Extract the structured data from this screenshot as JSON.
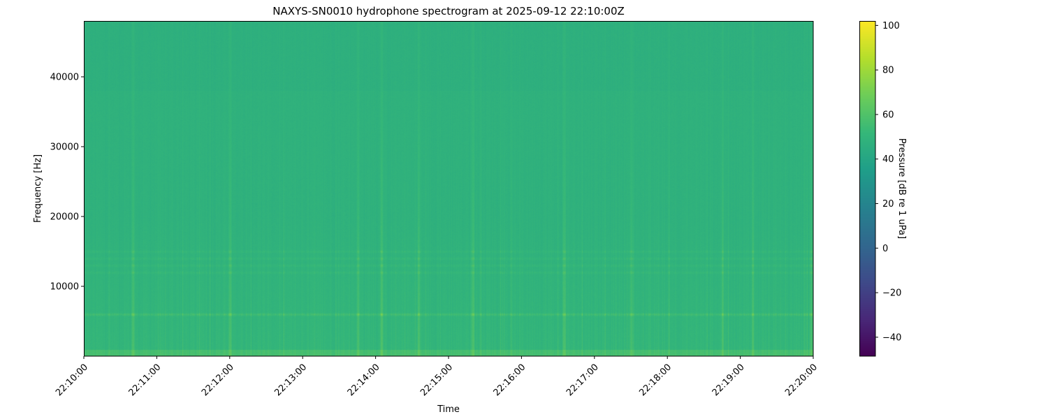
{
  "chart_data": {
    "type": "heatmap",
    "title": "NAXYS-SN0010 hydrophone spectrogram at 2025-09-12 22:10:00Z",
    "xlabel": "Time",
    "ylabel": "Frequency [Hz]",
    "x_ticks": [
      "22:10:00",
      "22:11:00",
      "22:12:00",
      "22:13:00",
      "22:14:00",
      "22:15:00",
      "22:16:00",
      "22:17:00",
      "22:18:00",
      "22:19:00",
      "22:20:00"
    ],
    "xlim": [
      "22:10:00",
      "22:20:00"
    ],
    "y_ticks": [
      10000,
      20000,
      30000,
      40000
    ],
    "ylim": [
      0,
      48000
    ],
    "colormap": "viridis",
    "colorbar": {
      "label": "Pressure [dB re 1 uPa]",
      "ticks": [
        -40,
        -20,
        0,
        20,
        40,
        60,
        80,
        100
      ],
      "clim": [
        -48.5,
        102
      ]
    },
    "background_level_db": 48,
    "tonal_bands_hz": [
      6000,
      12000,
      13000,
      14000,
      15000
    ],
    "transient_times": [
      "22:10:40",
      "22:12:00",
      "22:13:45",
      "22:14:05",
      "22:14:35",
      "22:15:20",
      "22:16:35",
      "22:17:30",
      "22:18:45",
      "22:19:10",
      "22:19:58"
    ],
    "grid": false
  }
}
